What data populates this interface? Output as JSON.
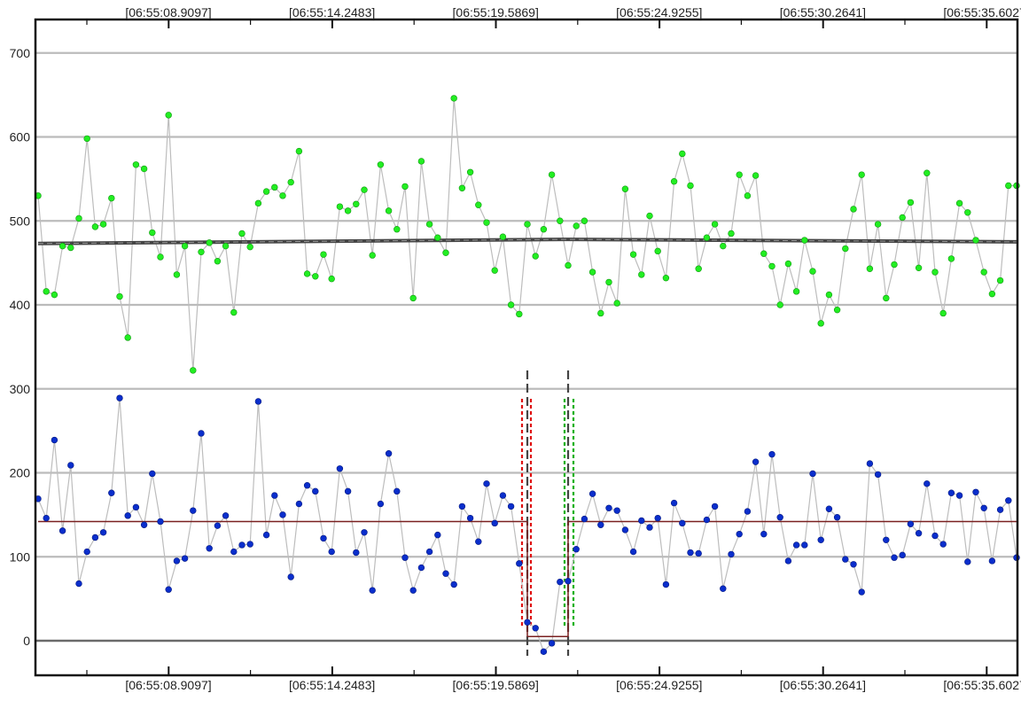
{
  "chart_data": {
    "type": "scatter",
    "title": "",
    "xlabel": "",
    "ylabel": "",
    "ylim": [
      -45,
      740
    ],
    "grid": "horizontal",
    "y_ticks": [
      0,
      100,
      200,
      300,
      400,
      500,
      600,
      700
    ],
    "x_tick_labels": [
      "[06:55:08.9097]",
      "[06:55:14.2483]",
      "[06:55:19.5869]",
      "[06:55:24.9255]",
      "[06:55:30.2641]",
      "[06:55:35.6027]"
    ],
    "colors": {
      "upper_points": "#22ee22",
      "lower_points": "#0a2ecc",
      "connector": "#bdbdbd",
      "trend": "#444444",
      "baseline": "#7a2020",
      "grid": "#bbbbbb",
      "marker_red": "#e01010",
      "marker_green": "#10b010",
      "marker_gray": "#444444"
    },
    "series": [
      {
        "role": "upper",
        "values": [
          530,
          416,
          412,
          470,
          468,
          503,
          598,
          493,
          496,
          527,
          410,
          361,
          567,
          562,
          486,
          457,
          626,
          436,
          470,
          322,
          463,
          474,
          452,
          470,
          391,
          485,
          469,
          521,
          535,
          540,
          530,
          546,
          583,
          437,
          434,
          460,
          431,
          517,
          512,
          520,
          537,
          459,
          567,
          512,
          490,
          541,
          408,
          571,
          496,
          480,
          462,
          646,
          539,
          558,
          519,
          498,
          441,
          481,
          400,
          389,
          496,
          458,
          490,
          555,
          500,
          447,
          494,
          500,
          439,
          390,
          427,
          402,
          538,
          460,
          436,
          506,
          464,
          432,
          547,
          580,
          542,
          443,
          480,
          496,
          470,
          485,
          555,
          530,
          554,
          461,
          446,
          400,
          449,
          416,
          477,
          440,
          378,
          412,
          394,
          467,
          514,
          555,
          443,
          496,
          408,
          448,
          504,
          522,
          444,
          557,
          439,
          390,
          455,
          521,
          510,
          477,
          439,
          413,
          429,
          542,
          542
        ]
      },
      {
        "role": "lower",
        "values": [
          169,
          146,
          239,
          131,
          209,
          68,
          106,
          123,
          129,
          176,
          289,
          149,
          159,
          138,
          199,
          142,
          61,
          95,
          98,
          155,
          247,
          110,
          137,
          149,
          106,
          114,
          115,
          285,
          126,
          173,
          150,
          76,
          163,
          185,
          178,
          122,
          106,
          205,
          178,
          105,
          129,
          60,
          163,
          223,
          178,
          99,
          60,
          87,
          106,
          126,
          80,
          67,
          160,
          146,
          118,
          187,
          140,
          173,
          160,
          92,
          22,
          15,
          -13,
          -3,
          70,
          71,
          109,
          145,
          175,
          138,
          158,
          155,
          132,
          106,
          143,
          135,
          146,
          67,
          164,
          140,
          105,
          104,
          144,
          160,
          62,
          103,
          127,
          154,
          213,
          127,
          222,
          147,
          95,
          114,
          114,
          199,
          120,
          157,
          147,
          97,
          91,
          58,
          211,
          198,
          120,
          99,
          102,
          139,
          128,
          187,
          125,
          115,
          176,
          173,
          94,
          177,
          158,
          95,
          156,
          167,
          99
        ]
      }
    ],
    "trend_line": [
      [
        0,
        473
      ],
      [
        65,
        478
      ],
      [
        120,
        475
      ]
    ],
    "baseline_segments": [
      {
        "from_index": 0,
        "to_index": 60,
        "value": 142
      },
      {
        "from_index": 60,
        "to_index": 65,
        "value": 5
      },
      {
        "from_index": 65,
        "to_index": 120,
        "value": 142
      }
    ]
  }
}
